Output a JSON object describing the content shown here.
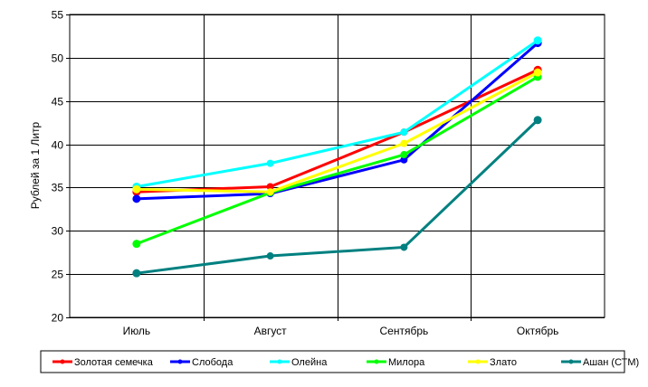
{
  "chart_data": {
    "type": "line",
    "title": "",
    "xlabel": "",
    "ylabel": "Рублей за 1 Литр",
    "ylim": [
      20,
      55
    ],
    "yticks": [
      20,
      25,
      30,
      35,
      40,
      45,
      50,
      55
    ],
    "categories": [
      "Июль",
      "Август",
      "Сентябрь",
      "Октябрь"
    ],
    "grid": true,
    "legend_position": "bottom",
    "series": [
      {
        "name": "Золотая семечка",
        "color": "#FF0000",
        "values": [
          34.5,
          35.1,
          41.4,
          48.6
        ]
      },
      {
        "name": "Слобода",
        "color": "#0000FF",
        "values": [
          33.7,
          34.3,
          38.2,
          51.7
        ]
      },
      {
        "name": "Олейна",
        "color": "#00FFFF",
        "values": [
          35.1,
          37.8,
          41.4,
          52.0
        ]
      },
      {
        "name": "Милора",
        "color": "#00FF00",
        "values": [
          28.5,
          34.4,
          38.8,
          47.8
        ]
      },
      {
        "name": "Злато",
        "color": "#FFFF00",
        "values": [
          34.8,
          34.5,
          40.1,
          48.3
        ]
      },
      {
        "name": "Ашан (СТМ)",
        "color": "#008080",
        "values": [
          25.1,
          27.1,
          28.1,
          42.8
        ]
      }
    ]
  }
}
